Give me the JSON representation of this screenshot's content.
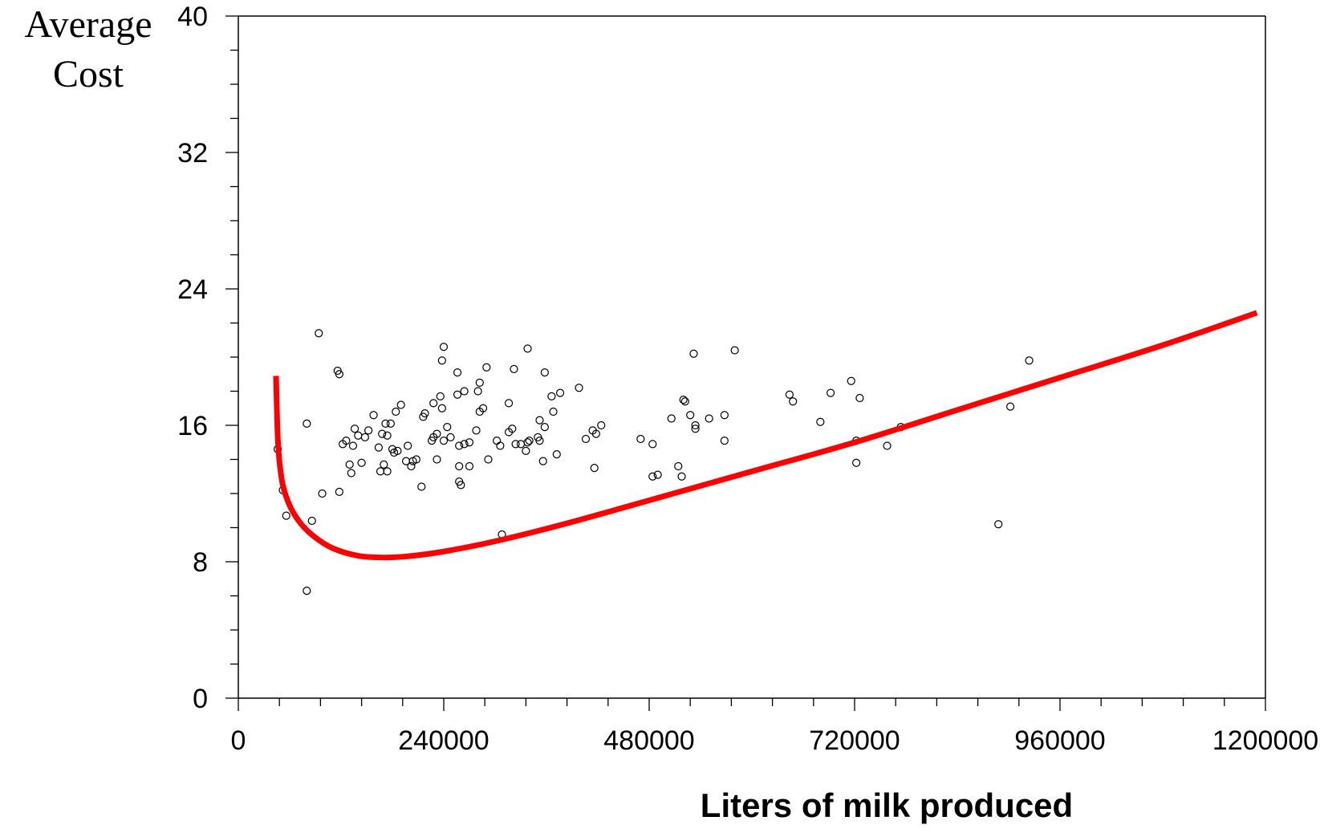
{
  "chart_data": {
    "type": "scatter",
    "title": "",
    "xlabel": "Liters of milk produced",
    "ylabel_lines": [
      "Average",
      "Cost"
    ],
    "xlim": [
      0,
      1200000
    ],
    "ylim": [
      0,
      40
    ],
    "x_ticks": [
      0,
      240000,
      480000,
      720000,
      960000,
      1200000
    ],
    "x_tick_labels": [
      "0",
      "240000",
      "480000",
      "720000",
      "960000",
      "1200000"
    ],
    "y_ticks": [
      0,
      8,
      16,
      24,
      32,
      40
    ],
    "y_tick_labels": [
      "0",
      "8",
      "16",
      "24",
      "32",
      "40"
    ],
    "grid": false,
    "legend": "none",
    "colors": {
      "curve": "#ff0000",
      "points": "#000000",
      "axis": "#000000"
    },
    "scatter_points": [
      [
        46000,
        14.6
      ],
      [
        52000,
        12.2
      ],
      [
        56000,
        10.7
      ],
      [
        80000,
        16.1
      ],
      [
        80000,
        6.3
      ],
      [
        86000,
        10.4
      ],
      [
        94000,
        21.4
      ],
      [
        98000,
        12.0
      ],
      [
        116000,
        19.2
      ],
      [
        118000,
        19.0
      ],
      [
        118000,
        12.1
      ],
      [
        122000,
        14.9
      ],
      [
        126000,
        15.1
      ],
      [
        130000,
        13.7
      ],
      [
        132000,
        13.2
      ],
      [
        134000,
        14.8
      ],
      [
        136000,
        15.8
      ],
      [
        140000,
        15.4
      ],
      [
        144000,
        13.8
      ],
      [
        148000,
        15.3
      ],
      [
        152000,
        15.7
      ],
      [
        158000,
        16.6
      ],
      [
        164000,
        14.7
      ],
      [
        166000,
        13.3
      ],
      [
        168000,
        15.5
      ],
      [
        170000,
        13.7
      ],
      [
        172000,
        16.1
      ],
      [
        174000,
        15.4
      ],
      [
        174000,
        13.3
      ],
      [
        178000,
        16.1
      ],
      [
        180000,
        14.6
      ],
      [
        182000,
        14.4
      ],
      [
        184000,
        16.8
      ],
      [
        186000,
        14.5
      ],
      [
        190000,
        17.2
      ],
      [
        196000,
        13.9
      ],
      [
        198000,
        14.8
      ],
      [
        202000,
        13.6
      ],
      [
        204000,
        13.9
      ],
      [
        208000,
        14.0
      ],
      [
        214000,
        12.4
      ],
      [
        216000,
        16.5
      ],
      [
        218000,
        16.7
      ],
      [
        226000,
        15.1
      ],
      [
        228000,
        15.3
      ],
      [
        228000,
        17.3
      ],
      [
        232000,
        15.5
      ],
      [
        232000,
        14.0
      ],
      [
        236000,
        17.7
      ],
      [
        238000,
        17.0
      ],
      [
        238000,
        19.8
      ],
      [
        240000,
        20.6
      ],
      [
        240000,
        15.1
      ],
      [
        244000,
        15.9
      ],
      [
        248000,
        15.3
      ],
      [
        256000,
        19.1
      ],
      [
        256000,
        17.8
      ],
      [
        258000,
        13.6
      ],
      [
        258000,
        12.7
      ],
      [
        260000,
        12.5
      ],
      [
        258000,
        14.8
      ],
      [
        264000,
        18.0
      ],
      [
        264000,
        14.9
      ],
      [
        270000,
        15.0
      ],
      [
        270000,
        13.6
      ],
      [
        278000,
        15.7
      ],
      [
        280000,
        18.0
      ],
      [
        282000,
        18.5
      ],
      [
        282000,
        16.8
      ],
      [
        286000,
        17.0
      ],
      [
        290000,
        19.4
      ],
      [
        292000,
        14.0
      ],
      [
        302000,
        15.1
      ],
      [
        306000,
        14.8
      ],
      [
        308000,
        9.6
      ],
      [
        316000,
        15.6
      ],
      [
        316000,
        17.3
      ],
      [
        320000,
        15.8
      ],
      [
        322000,
        19.3
      ],
      [
        324000,
        14.9
      ],
      [
        330000,
        14.9
      ],
      [
        336000,
        14.5
      ],
      [
        338000,
        15.0
      ],
      [
        338000,
        20.5
      ],
      [
        340000,
        15.1
      ],
      [
        350000,
        15.3
      ],
      [
        352000,
        15.1
      ],
      [
        352000,
        16.3
      ],
      [
        356000,
        13.9
      ],
      [
        358000,
        15.9
      ],
      [
        358000,
        19.1
      ],
      [
        366000,
        17.7
      ],
      [
        368000,
        16.8
      ],
      [
        372000,
        14.3
      ],
      [
        376000,
        17.9
      ],
      [
        398000,
        18.2
      ],
      [
        406000,
        15.2
      ],
      [
        414000,
        15.7
      ],
      [
        416000,
        13.5
      ],
      [
        418000,
        15.5
      ],
      [
        424000,
        16.0
      ],
      [
        470000,
        15.2
      ],
      [
        484000,
        13.0
      ],
      [
        484000,
        14.9
      ],
      [
        490000,
        13.1
      ],
      [
        506000,
        16.4
      ],
      [
        514000,
        13.6
      ],
      [
        518000,
        13.0
      ],
      [
        520000,
        17.5
      ],
      [
        522000,
        17.4
      ],
      [
        528000,
        16.6
      ],
      [
        532000,
        20.2
      ],
      [
        534000,
        15.8
      ],
      [
        534000,
        16.0
      ],
      [
        550000,
        16.4
      ],
      [
        568000,
        16.6
      ],
      [
        568000,
        15.1
      ],
      [
        580000,
        20.4
      ],
      [
        644000,
        17.8
      ],
      [
        648000,
        17.4
      ],
      [
        680000,
        16.2
      ],
      [
        692000,
        17.9
      ],
      [
        716000,
        18.6
      ],
      [
        722000,
        13.8
      ],
      [
        722000,
        15.1
      ],
      [
        726000,
        17.6
      ],
      [
        758000,
        14.8
      ],
      [
        774000,
        15.9
      ],
      [
        888000,
        10.2
      ],
      [
        902000,
        17.1
      ],
      [
        924000,
        19.8
      ]
    ],
    "curve_series": {
      "name": "",
      "x": [
        44000,
        45000,
        46000,
        48000,
        52000,
        60000,
        72000,
        88000,
        110000,
        140000,
        170000,
        200000,
        240000,
        300000,
        380000,
        480000,
        600000,
        720000,
        840000,
        960000,
        1080000,
        1190000
      ],
      "y": [
        18.9,
        17.0,
        15.4,
        13.9,
        12.5,
        11.3,
        10.3,
        9.5,
        8.8,
        8.35,
        8.25,
        8.33,
        8.6,
        9.2,
        10.2,
        11.6,
        13.3,
        15.0,
        16.9,
        18.8,
        20.7,
        22.6
      ]
    }
  }
}
